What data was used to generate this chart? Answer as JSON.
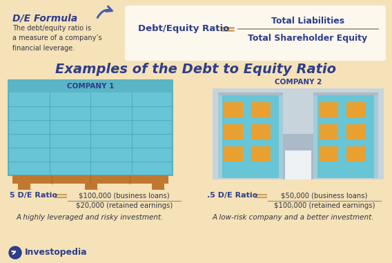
{
  "bg_color": "#f5e2b8",
  "white_box_color": "#fdf8ee",
  "title_formula": "D/E Formula",
  "formula_desc": "The debt/equity ratio is\na measure of a company’s\nfinancial leverage.",
  "formula_left": "Debt/Equity Ratio",
  "formula_numerator": "Total Liabilities",
  "formula_denominator": "Total Shareholder Equity",
  "main_title": "Examples of the Debt to Equity Ratio",
  "company1_label": "COMPANY 1",
  "company2_label": "COMPANY 2",
  "company1_ratio": "5 D/E Ratio",
  "company1_num": "$100,000 (business loans)",
  "company1_den": "$20,000 (retained earnings)",
  "company1_desc": "A highly leveraged and risky investment.",
  "company2_ratio": ".5 D/E Ratio",
  "company2_num": "$50,000 (business loans)",
  "company2_den": "$100,000 (retained earnings)",
  "company2_desc": "A low-risk company and a better investment.",
  "teal_color": "#68c5d5",
  "teal_dark": "#4aa8b8",
  "teal_mid": "#5ab5c5",
  "orange_color": "#e8a030",
  "brown_color": "#c07830",
  "brown_dark": "#a06020",
  "dark_blue": "#2d3d8a",
  "gray_building": "#c8d4dc",
  "gray_mid": "#aabac8",
  "white_color": "#ffffff",
  "investopedia_text": "Investopedia",
  "equal_color": "#c8a050",
  "text_dark": "#333344",
  "fraction_line_color": "#a09080",
  "arrow_color": "#4a5ab0"
}
